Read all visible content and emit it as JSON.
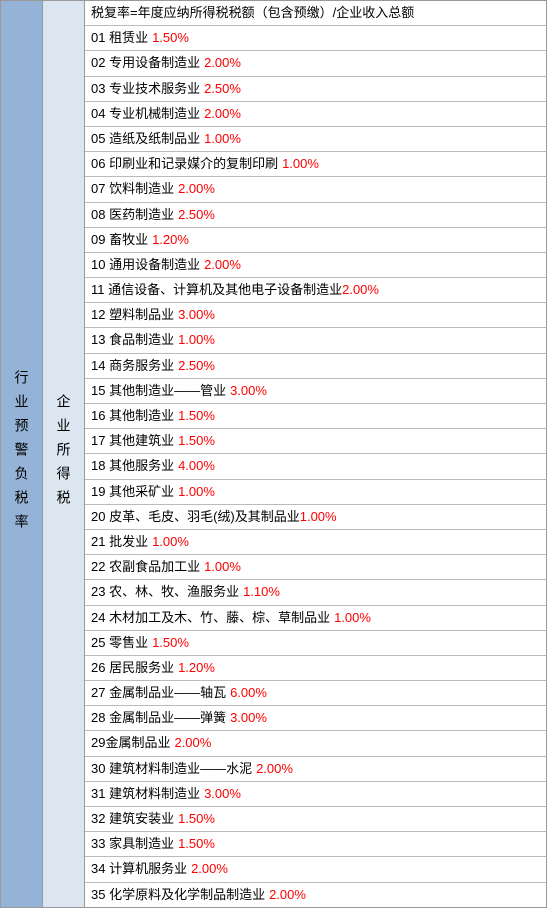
{
  "col1_label": "行业预警负税率",
  "col2_label": "企业所得税",
  "header": "税复率=年度应纳所得税税额（包含预缴）/企业收入总额",
  "rows": [
    {
      "num": "01",
      "label": "租赁业",
      "rate": "1.50%"
    },
    {
      "num": "02",
      "label": "专用设备制造业",
      "rate": "2.00%"
    },
    {
      "num": "03",
      "label": "专业技术服务业",
      "rate": "2.50%"
    },
    {
      "num": "04",
      "label": "专业机械制造业",
      "rate": "2.00%"
    },
    {
      "num": "05",
      "label": "造纸及纸制品业",
      "rate": "1.00%"
    },
    {
      "num": "06",
      "label": "印刷业和记录媒介的复制印刷",
      "rate": "1.00%"
    },
    {
      "num": "07",
      "label": "饮料制造业",
      "rate": "2.00%"
    },
    {
      "num": "08",
      "label": "医药制造业",
      "rate": "2.50%"
    },
    {
      "num": "09",
      "label": "畜牧业",
      "rate": "1.20%"
    },
    {
      "num": "10",
      "label": "通用设备制造业",
      "rate": "2.00%"
    },
    {
      "num": "11",
      "label": "通信设备、计算机及其他电子设备制造业",
      "rate": "2.00%",
      "nospace": true
    },
    {
      "num": "12",
      "label": "塑料制品业",
      "rate": "3.00%"
    },
    {
      "num": "13",
      "label": "食品制造业",
      "rate": "1.00%"
    },
    {
      "num": "14",
      "label": "商务服务业",
      "rate": "2.50%"
    },
    {
      "num": "15",
      "label": "其他制造业——管业",
      "rate": "3.00%"
    },
    {
      "num": "16",
      "label": "其他制造业",
      "rate": "1.50%"
    },
    {
      "num": "17",
      "label": "其他建筑业",
      "rate": "1.50%"
    },
    {
      "num": "18",
      "label": "其他服务业",
      "rate": "4.00%"
    },
    {
      "num": "19",
      "label": "其他采矿业",
      "rate": "1.00%"
    },
    {
      "num": "20",
      "label": "皮革、毛皮、羽毛(绒)及其制品业",
      "rate": "1.00%",
      "nospace": true
    },
    {
      "num": "21",
      "label": "批发业",
      "rate": "1.00%"
    },
    {
      "num": "22",
      "label": "农副食品加工业",
      "rate": "1.00%"
    },
    {
      "num": "23",
      "label": "农、林、牧、渔服务业",
      "rate": "1.10%"
    },
    {
      "num": "24",
      "label": "木材加工及木、竹、藤、棕、草制品业",
      "rate": "1.00%"
    },
    {
      "num": "25",
      "label": "零售业",
      "rate": "1.50%"
    },
    {
      "num": "26",
      "label": "居民服务业",
      "rate": "1.20%"
    },
    {
      "num": "27",
      "label": "金属制品业——轴瓦",
      "rate": "6.00%"
    },
    {
      "num": "28",
      "label": "金属制品业——弹簧",
      "rate": "3.00%"
    },
    {
      "num": "29",
      "label": "金属制品业",
      "rate": "2.00%",
      "nospace_num": true
    },
    {
      "num": "30",
      "label": "建筑材料制造业——水泥",
      "rate": "2.00%"
    },
    {
      "num": "31",
      "label": "建筑材料制造业",
      "rate": "3.00%"
    },
    {
      "num": "32",
      "label": "建筑安装业",
      "rate": "1.50%"
    },
    {
      "num": "33",
      "label": "家具制造业",
      "rate": "1.50%"
    },
    {
      "num": "34",
      "label": "计算机服务业",
      "rate": "2.00%"
    },
    {
      "num": "35",
      "label": "化学原料及化学制品制造业",
      "rate": "2.00%"
    }
  ],
  "colors": {
    "col1_bg": "#95b3d7",
    "col2_bg": "#dce6f1",
    "rate_color": "#ff0000",
    "border_color": "#999999",
    "row_border": "#bbbbbb"
  }
}
